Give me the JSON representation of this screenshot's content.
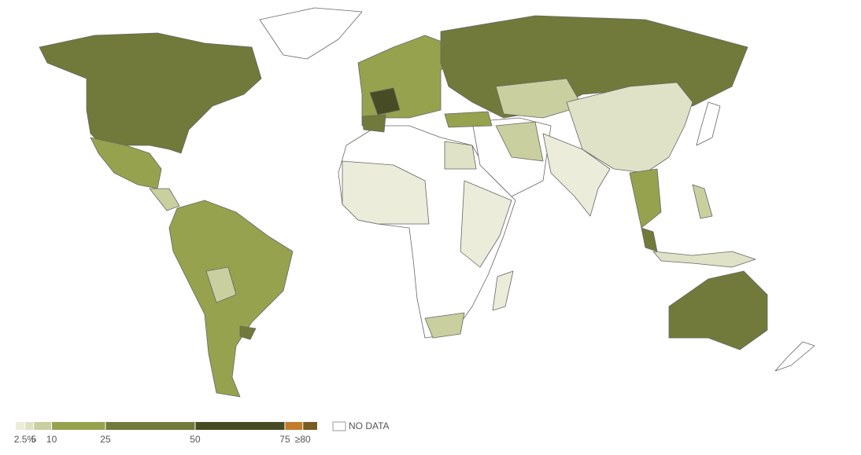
{
  "legend": {
    "xlim": [
      0,
      84
    ],
    "ticks": [
      {
        "value": 2.5,
        "label": "2.5%"
      },
      5,
      10,
      25,
      50,
      75,
      {
        "value": 80,
        "label": "≥80"
      }
    ],
    "colors": [
      "#ebecd9",
      "#dfe2c6",
      "#c9cf9e",
      "#97a24e",
      "#717a3a",
      "#474c25",
      "#c27c2a",
      "#7a5a23"
    ],
    "no_data": "NO DATA"
  }
}
